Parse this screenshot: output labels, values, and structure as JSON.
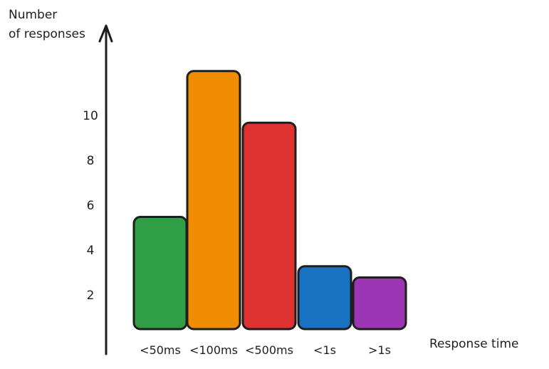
{
  "chart_data": {
    "type": "bar",
    "ylabel_lines": [
      "Number",
      "of responses"
    ],
    "xlabel": "Response time",
    "categories": [
      "<50ms",
      "<100ms",
      "<500ms",
      "<1s",
      ">1s"
    ],
    "values": [
      5,
      11.5,
      9.2,
      2.8,
      2.3
    ],
    "yticks": [
      "2",
      "4",
      "6",
      "8",
      "10"
    ],
    "ylim": [
      0,
      12
    ],
    "grid": false,
    "legend": "none",
    "colors": [
      "#2f9e44",
      "#f08c00",
      "#e03131",
      "#1971c2",
      "#9c36b5"
    ],
    "stroke_color": "#1e1e1e"
  }
}
